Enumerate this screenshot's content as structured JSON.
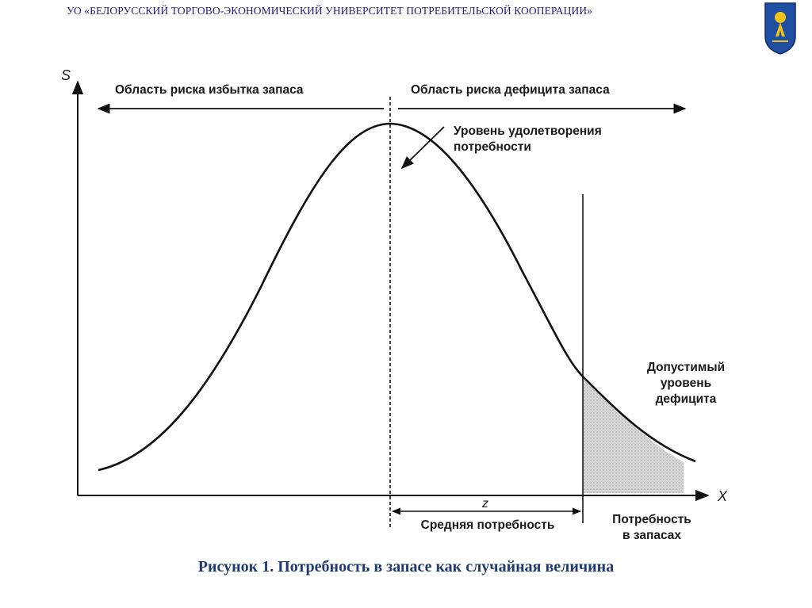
{
  "header": {
    "title": "УО «БЕЛОРУССКИЙ ТОРГОВО-ЭКОНОМИЧЕСКИЙ УНИВЕРСИТЕТ ПОТРЕБИТЕЛЬСКОЙ КООПЕРАЦИИ»"
  },
  "emblem": {
    "icon": "university-emblem-icon"
  },
  "diagram": {
    "y_axis_label": "S",
    "x_axis_label": "X",
    "region_left": "Область риска избытка запаса",
    "region_right": "Область риска дефицита запаса",
    "annotation_line1": "Уровень удолетворения",
    "annotation_line2": "потребности",
    "deficit_line1": "Допустимый",
    "deficit_line2": "уровень",
    "deficit_line3": "дефицита",
    "z_label": "z",
    "mean_label": "Средняя потребность",
    "stock_line1": "Потребность",
    "stock_line2": "в запасах",
    "colors": {
      "line": "#111111",
      "shade": "#d2d2d2",
      "caption": "#1f3a6e",
      "header": "#1f1f7a"
    }
  },
  "caption": "Рисунок 1. Потребность в запасе как случайная величина"
}
